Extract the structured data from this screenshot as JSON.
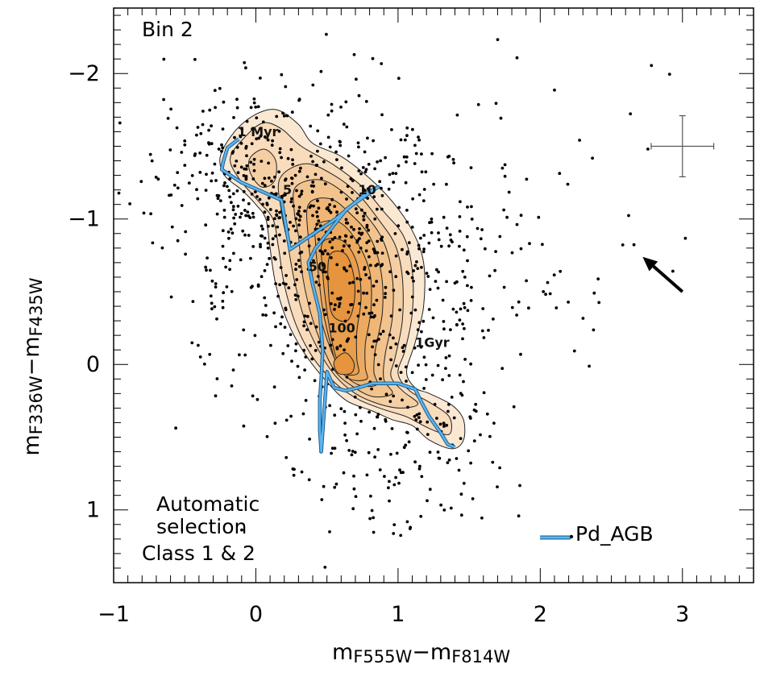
{
  "chart_data": {
    "type": "scatter",
    "panel_label": "Bin 2",
    "xlabel": {
      "main": "m",
      "sub1": "F555W",
      "dash": "−m",
      "sub2": "F814W"
    },
    "ylabel": {
      "main": "m",
      "sub1": "F336W",
      "dash": "−m",
      "sub2": "F435W"
    },
    "xlim": [
      -1,
      3.5
    ],
    "ylim": [
      1.5,
      -2.45
    ],
    "x_ticks": [
      {
        "value": -1,
        "label": "−1"
      },
      {
        "value": 0,
        "label": "0"
      },
      {
        "value": 1,
        "label": "1"
      },
      {
        "value": 2,
        "label": "2"
      },
      {
        "value": 3,
        "label": "3"
      }
    ],
    "y_ticks": [
      {
        "value": -2,
        "label": "−2"
      },
      {
        "value": -1,
        "label": "−1"
      },
      {
        "value": 0,
        "label": "0"
      },
      {
        "value": 1,
        "label": "1"
      }
    ],
    "selection_text": [
      "Automatic",
      "selection"
    ],
    "class_text": "Class 1 & 2",
    "legend": {
      "label": "Pd_AGB",
      "color": "#5ab4ee"
    },
    "colors": {
      "contour_fill": [
        "#fbe8d3",
        "#f8dcbc",
        "#f5cfa4",
        "#f2c38d",
        "#efb676",
        "#ecaa60",
        "#e99e4c",
        "#e6943e"
      ],
      "class_text": "#e8a040",
      "track": "#5ab4ee",
      "track_outline": "#1a5a8a"
    },
    "error_bar": {
      "x": 3.0,
      "y": -1.5,
      "dx": 0.22,
      "dy": 0.21
    },
    "reddening_arrow": {
      "from": [
        3.0,
        -0.5
      ],
      "to": [
        2.72,
        -0.74
      ]
    },
    "track": {
      "name": "Pd_AGB",
      "points": [
        [
          -0.12,
          -1.55
        ],
        [
          -0.2,
          -1.49
        ],
        [
          -0.23,
          -1.39
        ],
        [
          -0.24,
          -1.34
        ],
        [
          -0.1,
          -1.25
        ],
        [
          0.18,
          -1.13
        ],
        [
          0.24,
          -0.79
        ],
        [
          0.56,
          -1.0
        ],
        [
          0.78,
          -1.18
        ],
        [
          0.86,
          -1.22
        ],
        [
          0.64,
          -1.07
        ],
        [
          0.42,
          -0.8
        ],
        [
          0.37,
          -0.7
        ],
        [
          0.4,
          -0.55
        ],
        [
          0.45,
          -0.35
        ],
        [
          0.47,
          -0.1
        ],
        [
          0.46,
          0.1
        ],
        [
          0.45,
          0.25
        ],
        [
          0.45,
          0.45
        ],
        [
          0.46,
          0.6
        ],
        [
          0.5,
          0.05
        ],
        [
          0.55,
          0.16
        ],
        [
          0.63,
          0.18
        ],
        [
          0.72,
          0.16
        ],
        [
          0.82,
          0.13
        ],
        [
          1.0,
          0.13
        ],
        [
          1.12,
          0.17
        ],
        [
          1.16,
          0.25
        ],
        [
          1.22,
          0.36
        ],
        [
          1.3,
          0.47
        ],
        [
          1.35,
          0.55
        ],
        [
          1.4,
          0.57
        ]
      ]
    },
    "age_labels": [
      {
        "text": "1 Myr",
        "x": -0.13,
        "y": -1.57
      },
      {
        "text": "5",
        "x": 0.19,
        "y": -1.17
      },
      {
        "text": "10",
        "x": 0.72,
        "y": -1.17
      },
      {
        "text": "50",
        "x": 0.37,
        "y": -0.64
      },
      {
        "text": "100",
        "x": 0.51,
        "y": -0.22
      },
      {
        "text": "1Gyr",
        "x": 1.12,
        "y": -0.12
      }
    ],
    "contours": [
      [
        [
          -0.25,
          -1.43
        ],
        [
          -0.15,
          -1.6
        ],
        [
          0.0,
          -1.72
        ],
        [
          0.15,
          -1.75
        ],
        [
          0.3,
          -1.65
        ],
        [
          0.4,
          -1.52
        ],
        [
          0.6,
          -1.43
        ],
        [
          0.8,
          -1.28
        ],
        [
          0.96,
          -1.12
        ],
        [
          1.1,
          -0.92
        ],
        [
          1.18,
          -0.7
        ],
        [
          1.18,
          -0.4
        ],
        [
          1.12,
          -0.15
        ],
        [
          1.06,
          0.05
        ],
        [
          1.12,
          0.16
        ],
        [
          1.22,
          0.2
        ],
        [
          1.38,
          0.28
        ],
        [
          1.46,
          0.38
        ],
        [
          1.46,
          0.52
        ],
        [
          1.38,
          0.58
        ],
        [
          1.22,
          0.52
        ],
        [
          1.1,
          0.42
        ],
        [
          0.96,
          0.38
        ],
        [
          0.82,
          0.32
        ],
        [
          0.64,
          0.25
        ],
        [
          0.5,
          0.12
        ],
        [
          0.34,
          -0.08
        ],
        [
          0.22,
          -0.3
        ],
        [
          0.14,
          -0.55
        ],
        [
          0.1,
          -0.8
        ],
        [
          0.07,
          -1.0
        ],
        [
          0.0,
          -1.1
        ],
        [
          -0.1,
          -1.2
        ],
        [
          -0.22,
          -1.3
        ]
      ],
      [
        [
          -0.18,
          -1.42
        ],
        [
          -0.08,
          -1.56
        ],
        [
          0.05,
          -1.66
        ],
        [
          0.18,
          -1.62
        ],
        [
          0.32,
          -1.5
        ],
        [
          0.55,
          -1.37
        ],
        [
          0.75,
          -1.22
        ],
        [
          0.9,
          -1.05
        ],
        [
          1.04,
          -0.88
        ],
        [
          1.1,
          -0.65
        ],
        [
          1.1,
          -0.35
        ],
        [
          1.05,
          -0.1
        ],
        [
          1.0,
          0.06
        ],
        [
          1.08,
          0.18
        ],
        [
          1.22,
          0.26
        ],
        [
          1.36,
          0.36
        ],
        [
          1.36,
          0.48
        ],
        [
          1.22,
          0.44
        ],
        [
          1.06,
          0.36
        ],
        [
          0.9,
          0.31
        ],
        [
          0.72,
          0.24
        ],
        [
          0.56,
          0.13
        ],
        [
          0.4,
          -0.05
        ],
        [
          0.28,
          -0.28
        ],
        [
          0.2,
          -0.55
        ],
        [
          0.16,
          -0.8
        ],
        [
          0.12,
          -1.0
        ],
        [
          0.02,
          -1.12
        ],
        [
          -0.12,
          -1.28
        ]
      ],
      [
        [
          0.17,
          -1.28
        ],
        [
          0.35,
          -1.38
        ],
        [
          0.55,
          -1.3
        ],
        [
          0.72,
          -1.17
        ],
        [
          0.86,
          -1.0
        ],
        [
          0.98,
          -0.82
        ],
        [
          1.03,
          -0.6
        ],
        [
          1.03,
          -0.3
        ],
        [
          0.98,
          -0.05
        ],
        [
          0.95,
          0.08
        ],
        [
          1.03,
          0.18
        ],
        [
          1.14,
          0.27
        ],
        [
          1.02,
          0.3
        ],
        [
          0.86,
          0.27
        ],
        [
          0.7,
          0.2
        ],
        [
          0.56,
          0.08
        ],
        [
          0.44,
          -0.1
        ],
        [
          0.34,
          -0.32
        ],
        [
          0.27,
          -0.58
        ],
        [
          0.22,
          -0.85
        ],
        [
          0.18,
          -1.05
        ]
      ],
      [
        [
          0.28,
          -1.22
        ],
        [
          0.45,
          -1.27
        ],
        [
          0.62,
          -1.18
        ],
        [
          0.78,
          -1.02
        ],
        [
          0.9,
          -0.84
        ],
        [
          0.96,
          -0.6
        ],
        [
          0.96,
          -0.32
        ],
        [
          0.91,
          -0.07
        ],
        [
          0.9,
          0.1
        ],
        [
          0.96,
          0.2
        ],
        [
          0.82,
          0.22
        ],
        [
          0.68,
          0.15
        ],
        [
          0.56,
          0.05
        ],
        [
          0.47,
          -0.12
        ],
        [
          0.39,
          -0.34
        ],
        [
          0.33,
          -0.6
        ],
        [
          0.3,
          -0.88
        ],
        [
          0.27,
          -1.05
        ]
      ],
      [
        [
          0.37,
          -1.1
        ],
        [
          0.52,
          -1.14
        ],
        [
          0.66,
          -1.04
        ],
        [
          0.8,
          -0.88
        ],
        [
          0.88,
          -0.64
        ],
        [
          0.89,
          -0.36
        ],
        [
          0.84,
          -0.1
        ],
        [
          0.83,
          0.05
        ],
        [
          0.85,
          0.14
        ],
        [
          0.72,
          0.14
        ],
        [
          0.6,
          0.04
        ],
        [
          0.52,
          -0.12
        ],
        [
          0.45,
          -0.34
        ],
        [
          0.4,
          -0.6
        ],
        [
          0.37,
          -0.86
        ]
      ],
      [
        [
          0.43,
          -0.96
        ],
        [
          0.58,
          -0.98
        ],
        [
          0.7,
          -0.86
        ],
        [
          0.8,
          -0.64
        ],
        [
          0.81,
          -0.38
        ],
        [
          0.77,
          -0.14
        ],
        [
          0.77,
          0.02
        ],
        [
          0.78,
          0.1
        ],
        [
          0.66,
          0.1
        ],
        [
          0.57,
          0.0
        ],
        [
          0.52,
          -0.16
        ],
        [
          0.47,
          -0.38
        ],
        [
          0.44,
          -0.62
        ],
        [
          0.42,
          -0.82
        ]
      ],
      [
        [
          0.47,
          -0.84
        ],
        [
          0.61,
          -0.85
        ],
        [
          0.71,
          -0.7
        ],
        [
          0.74,
          -0.46
        ],
        [
          0.71,
          -0.22
        ],
        [
          0.71,
          -0.04
        ],
        [
          0.72,
          0.06
        ],
        [
          0.62,
          0.06
        ],
        [
          0.56,
          -0.06
        ],
        [
          0.52,
          -0.24
        ],
        [
          0.49,
          -0.44
        ],
        [
          0.47,
          -0.64
        ]
      ],
      [
        [
          0.52,
          -0.75
        ],
        [
          0.63,
          -0.76
        ],
        [
          0.69,
          -0.6
        ],
        [
          0.69,
          -0.42
        ],
        [
          0.64,
          -0.3
        ],
        [
          0.54,
          -0.34
        ],
        [
          0.51,
          -0.52
        ]
      ],
      [
        [
          0.55,
          -0.02
        ],
        [
          0.63,
          -0.08
        ],
        [
          0.69,
          -0.01
        ],
        [
          0.67,
          0.06
        ],
        [
          0.58,
          0.06
        ]
      ],
      [
        [
          -0.04,
          -1.42
        ],
        [
          0.06,
          -1.48
        ],
        [
          0.14,
          -1.4
        ],
        [
          0.13,
          -1.26
        ],
        [
          0.04,
          -1.22
        ],
        [
          -0.04,
          -1.32
        ]
      ]
    ],
    "n_points": 1040
  }
}
